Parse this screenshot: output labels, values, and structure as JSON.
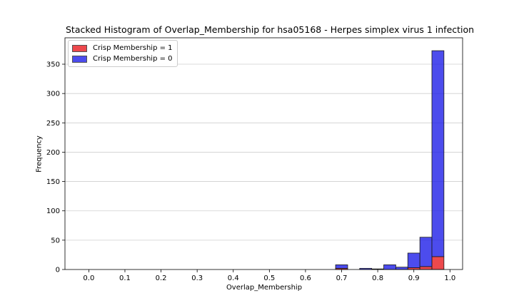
{
  "chart_data": {
    "type": "bar",
    "title": "Stacked Histogram of Overlap_Membership for hsa05168 - Herpes simplex virus 1 infection",
    "xlabel": "Overlap_Membership",
    "ylabel": "Frequency",
    "xlim": [
      -0.066,
      1.035
    ],
    "ylim": [
      0,
      395
    ],
    "xticks": [
      "0.0",
      "0.1",
      "0.2",
      "0.3",
      "0.4",
      "0.5",
      "0.6",
      "0.7",
      "0.8",
      "0.9",
      "1.0"
    ],
    "yticks": [
      "0",
      "50",
      "100",
      "150",
      "200",
      "250",
      "300",
      "350"
    ],
    "grid": "y",
    "legend_position": "top-left",
    "bin_edges": [
      0.6833,
      0.7167,
      0.75,
      0.7833,
      0.8167,
      0.85,
      0.8833,
      0.9167,
      0.95,
      0.9833
    ],
    "series": [
      {
        "name": "Crisp Membership = 1",
        "color": "#e8161a",
        "values": [
          2,
          0,
          0,
          0,
          0,
          0,
          3,
          5,
          22
        ]
      },
      {
        "name": "Crisp Membership = 0",
        "color": "#1a1ae8",
        "values": [
          6,
          0,
          2,
          1,
          8,
          4,
          25,
          50,
          351
        ]
      }
    ]
  }
}
